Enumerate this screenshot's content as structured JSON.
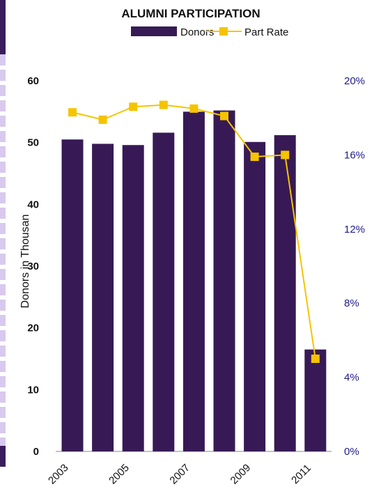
{
  "colors": {
    "bar": "#371a55",
    "line": "#f5c400",
    "right_axis_text": "#1f1a8a",
    "text": "#111111",
    "axis": "#888888"
  },
  "chart_data": {
    "type": "bar",
    "title": "ALUMNI PARTICIPATION",
    "legend": {
      "placement": "top-center",
      "entries": [
        "Donors",
        "Part Rate"
      ]
    },
    "categories": [
      "2003",
      "2004",
      "2005",
      "2006",
      "2007",
      "2008",
      "2009",
      "2010",
      "2011"
    ],
    "x_tick_labels": [
      "2003",
      "",
      "2005",
      "",
      "2007",
      "",
      "2009",
      "",
      "2011"
    ],
    "series": [
      {
        "name": "Donors",
        "type": "bar",
        "axis": "left",
        "values": [
          50.5,
          49.8,
          49.6,
          51.6,
          55.0,
          55.2,
          50.1,
          51.2,
          16.5
        ]
      },
      {
        "name": "Part Rate",
        "type": "line",
        "axis": "right",
        "values": [
          18.3,
          17.9,
          18.6,
          18.7,
          18.5,
          18.1,
          15.9,
          16.0,
          5.0
        ]
      }
    ],
    "ylabel": "Donors in Thousan",
    "ylim": [
      0,
      60
    ],
    "y_ticks": [
      "0",
      "10",
      "20",
      "30",
      "40",
      "50",
      "60"
    ],
    "y2lim": [
      0,
      20
    ],
    "y2_ticks": [
      "0%",
      "4%",
      "8%",
      "12%",
      "16%",
      "20%"
    ],
    "grid": false
  }
}
